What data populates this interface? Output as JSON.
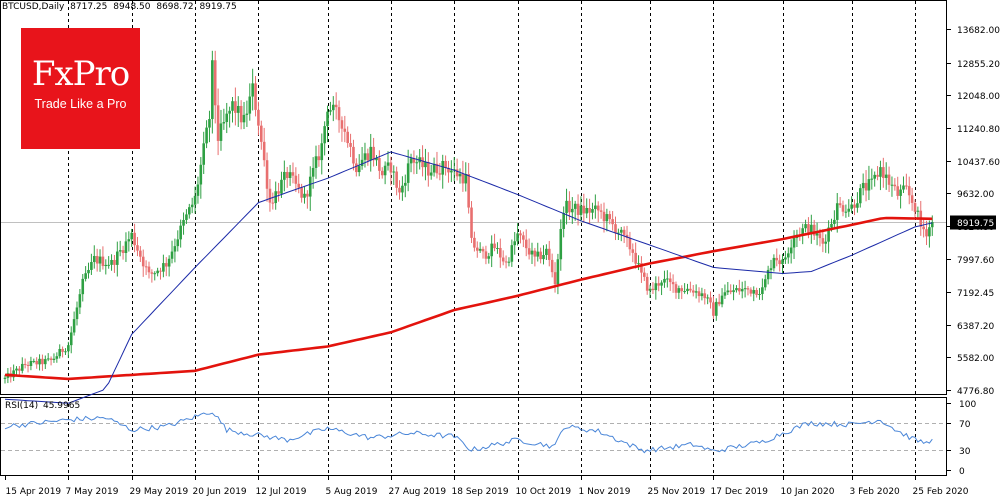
{
  "header": {
    "symbol": "BTCUSD,Daily",
    "open": "8717.25",
    "high": "8948.50",
    "low": "8698.72",
    "close": "8919.75"
  },
  "logo": {
    "brand": "FxPro",
    "tagline": "Trade Like a Pro"
  },
  "rsi_label": {
    "name": "RSI(14)",
    "value": "45.9965"
  },
  "colors": {
    "bull": "#2ea043",
    "bear": "#e86f6f",
    "ma_slow": "#e3130d",
    "ma_fast": "#1b2aa8",
    "rsi": "#4a86d8",
    "logo_bg": "#e8141b"
  },
  "chart_data": [
    {
      "type": "candlestick",
      "title": "BTCUSD,Daily",
      "x_tick_labels": [
        "15 Apr 2019",
        "7 May 2019",
        "29 May 2019",
        "20 Jun 2019",
        "12 Jul 2019",
        "5 Aug 2019",
        "27 Aug 2019",
        "18 Sep 2019",
        "10 Oct 2019",
        "1 Nov 2019",
        "25 Nov 2019",
        "17 Dec 2019",
        "10 Jan 2020",
        "3 Feb 2020",
        "25 Feb 2020"
      ],
      "y_tick_labels": [
        "13682.00",
        "12855.20",
        "12048.00",
        "11240.80",
        "10437.60",
        "9632.00",
        "8824.80",
        "7997.60",
        "7192.45",
        "6387.20",
        "5582.00",
        "4776.80"
      ],
      "ylim": [
        4776.8,
        13682.0
      ],
      "current_price": "8919.75",
      "grid": "vertical dashed",
      "close_anchors": [
        [
          "15 Apr 2019",
          5050
        ],
        [
          "22 Apr 2019",
          5400
        ],
        [
          "1 May 2019",
          5500
        ],
        [
          "7 May 2019",
          5900
        ],
        [
          "12 May 2019",
          7400
        ],
        [
          "16 May 2019",
          8000
        ],
        [
          "22 May 2019",
          7900
        ],
        [
          "29 May 2019",
          8600
        ],
        [
          "4 Jun 2019",
          7600
        ],
        [
          "10 Jun 2019",
          7900
        ],
        [
          "16 Jun 2019",
          8900
        ],
        [
          "20 Jun 2019",
          9500
        ],
        [
          "25 Jun 2019",
          11500
        ],
        [
          "26 Jun 2019",
          12700
        ],
        [
          "28 Jun 2019",
          11000
        ],
        [
          "3 Jul 2019",
          11800
        ],
        [
          "7 Jul 2019",
          11400
        ],
        [
          "10 Jul 2019",
          12200
        ],
        [
          "12 Jul 2019",
          11400
        ],
        [
          "16 Jul 2019",
          9400
        ],
        [
          "22 Jul 2019",
          10100
        ],
        [
          "28 Jul 2019",
          9500
        ],
        [
          "3 Aug 2019",
          10800
        ],
        [
          "5 Aug 2019",
          11800
        ],
        [
          "10 Aug 2019",
          11400
        ],
        [
          "15 Aug 2019",
          10300
        ],
        [
          "20 Aug 2019",
          10700
        ],
        [
          "24 Aug 2019",
          10100
        ],
        [
          "27 Aug 2019",
          10300
        ],
        [
          "30 Aug 2019",
          9600
        ],
        [
          "3 Sep 2019",
          10500
        ],
        [
          "9 Sep 2019",
          10200
        ],
        [
          "15 Sep 2019",
          10300
        ],
        [
          "18 Sep 2019",
          10150
        ],
        [
          "22 Sep 2019",
          10000
        ],
        [
          "24 Sep 2019",
          8400
        ],
        [
          "28 Sep 2019",
          8100
        ],
        [
          "2 Oct 2019",
          8300
        ],
        [
          "6 Oct 2019",
          7900
        ],
        [
          "10 Oct 2019",
          8600
        ],
        [
          "16 Oct 2019",
          8000
        ],
        [
          "20 Oct 2019",
          8200
        ],
        [
          "23 Oct 2019",
          7450
        ],
        [
          "25 Oct 2019",
          8650
        ],
        [
          "26 Oct 2019",
          9300
        ],
        [
          "1 Nov 2019",
          9200
        ],
        [
          "7 Nov 2019",
          9200
        ],
        [
          "14 Nov 2019",
          8700
        ],
        [
          "19 Nov 2019",
          8200
        ],
        [
          "22 Nov 2019",
          7600
        ],
        [
          "25 Nov 2019",
          7200
        ],
        [
          "29 Nov 2019",
          7500
        ],
        [
          "4 Dec 2019",
          7300
        ],
        [
          "10 Dec 2019",
          7250
        ],
        [
          "14 Dec 2019",
          7100
        ],
        [
          "17 Dec 2019",
          6700
        ],
        [
          "20 Dec 2019",
          7150
        ],
        [
          "26 Dec 2019",
          7250
        ],
        [
          "3 Jan 2020",
          7250
        ],
        [
          "7 Jan 2020",
          8100
        ],
        [
          "10 Jan 2020",
          7900
        ],
        [
          "14 Jan 2020",
          8600
        ],
        [
          "19 Jan 2020",
          8800
        ],
        [
          "24 Jan 2020",
          8400
        ],
        [
          "29 Jan 2020",
          9300
        ],
        [
          "3 Feb 2020",
          9300
        ],
        [
          "7 Feb 2020",
          9750
        ],
        [
          "10 Feb 2020",
          9850
        ],
        [
          "13 Feb 2020",
          10250
        ],
        [
          "16 Feb 2020",
          9900
        ],
        [
          "19 Feb 2020",
          9600
        ],
        [
          "22 Feb 2020",
          9700
        ],
        [
          "25 Feb 2020",
          9300
        ],
        [
          "27 Feb 2020",
          8800
        ],
        [
          "29 Feb 2020",
          8700
        ],
        [
          "2 Mar 2020",
          8919.75
        ]
      ],
      "moving_average_slow_anchors": [
        [
          "15 Apr 2019",
          5150
        ],
        [
          "7 May 2019",
          5050
        ],
        [
          "29 May 2019",
          5150
        ],
        [
          "20 Jun 2019",
          5250
        ],
        [
          "12 Jul 2019",
          5650
        ],
        [
          "5 Aug 2019",
          5850
        ],
        [
          "27 Aug 2019",
          6200
        ],
        [
          "18 Sep 2019",
          6750
        ],
        [
          "10 Oct 2019",
          7100
        ],
        [
          "1 Nov 2019",
          7500
        ],
        [
          "25 Nov 2019",
          7900
        ],
        [
          "17 Dec 2019",
          8200
        ],
        [
          "10 Jan 2020",
          8500
        ],
        [
          "3 Feb 2020",
          8850
        ],
        [
          "14 Feb 2020",
          9020
        ],
        [
          "2 Mar 2020",
          9000
        ]
      ],
      "moving_average_fast_anchors": [
        [
          "15 Apr 2019",
          4550
        ],
        [
          "7 May 2019",
          4450
        ],
        [
          "20 May 2019",
          4800
        ],
        [
          "29 May 2019",
          6150
        ],
        [
          "20 Jun 2019",
          7800
        ],
        [
          "12 Jul 2019",
          9400
        ],
        [
          "5 Aug 2019",
          10000
        ],
        [
          "27 Aug 2019",
          10650
        ],
        [
          "18 Sep 2019",
          10200
        ],
        [
          "10 Oct 2019",
          9600
        ],
        [
          "1 Nov 2019",
          8950
        ],
        [
          "25 Nov 2019",
          8350
        ],
        [
          "17 Dec 2019",
          7800
        ],
        [
          "10 Jan 2020",
          7650
        ],
        [
          "20 Jan 2020",
          7700
        ],
        [
          "3 Feb 2020",
          8100
        ],
        [
          "14 Feb 2020",
          8450
        ],
        [
          "25 Feb 2020",
          8800
        ],
        [
          "2 Mar 2020",
          8900
        ]
      ]
    },
    {
      "type": "line",
      "title": "RSI(14) 45.9965",
      "y_tick_labels": [
        "100",
        "70",
        "30",
        "0"
      ],
      "ylim": [
        0,
        100
      ],
      "levels": [
        30,
        70
      ],
      "last_value": 45.9965,
      "anchors": [
        [
          "15 Apr 2019",
          65
        ],
        [
          "7 May 2019",
          75
        ],
        [
          "20 May 2019",
          78
        ],
        [
          "29 May 2019",
          60
        ],
        [
          "10 Jun 2019",
          65
        ],
        [
          "26 Jun 2019",
          88
        ],
        [
          "1 Jul 2019",
          60
        ],
        [
          "12 Jul 2019",
          52
        ],
        [
          "22 Jul 2019",
          45
        ],
        [
          "5 Aug 2019",
          62
        ],
        [
          "20 Aug 2019",
          48
        ],
        [
          "3 Sep 2019",
          55
        ],
        [
          "18 Sep 2019",
          50
        ],
        [
          "24 Sep 2019",
          30
        ],
        [
          "10 Oct 2019",
          45
        ],
        [
          "23 Oct 2019",
          35
        ],
        [
          "26 Oct 2019",
          65
        ],
        [
          "7 Nov 2019",
          58
        ],
        [
          "22 Nov 2019",
          30
        ],
        [
          "25 Nov 2019",
          30
        ],
        [
          "10 Dec 2019",
          38
        ],
        [
          "17 Dec 2019",
          28
        ],
        [
          "3 Jan 2020",
          42
        ],
        [
          "10 Jan 2020",
          55
        ],
        [
          "19 Jan 2020",
          70
        ],
        [
          "3 Feb 2020",
          68
        ],
        [
          "13 Feb 2020",
          75
        ],
        [
          "19 Feb 2020",
          58
        ],
        [
          "25 Feb 2020",
          45
        ],
        [
          "29 Feb 2020",
          40
        ],
        [
          "2 Mar 2020",
          45.9965
        ]
      ]
    }
  ]
}
